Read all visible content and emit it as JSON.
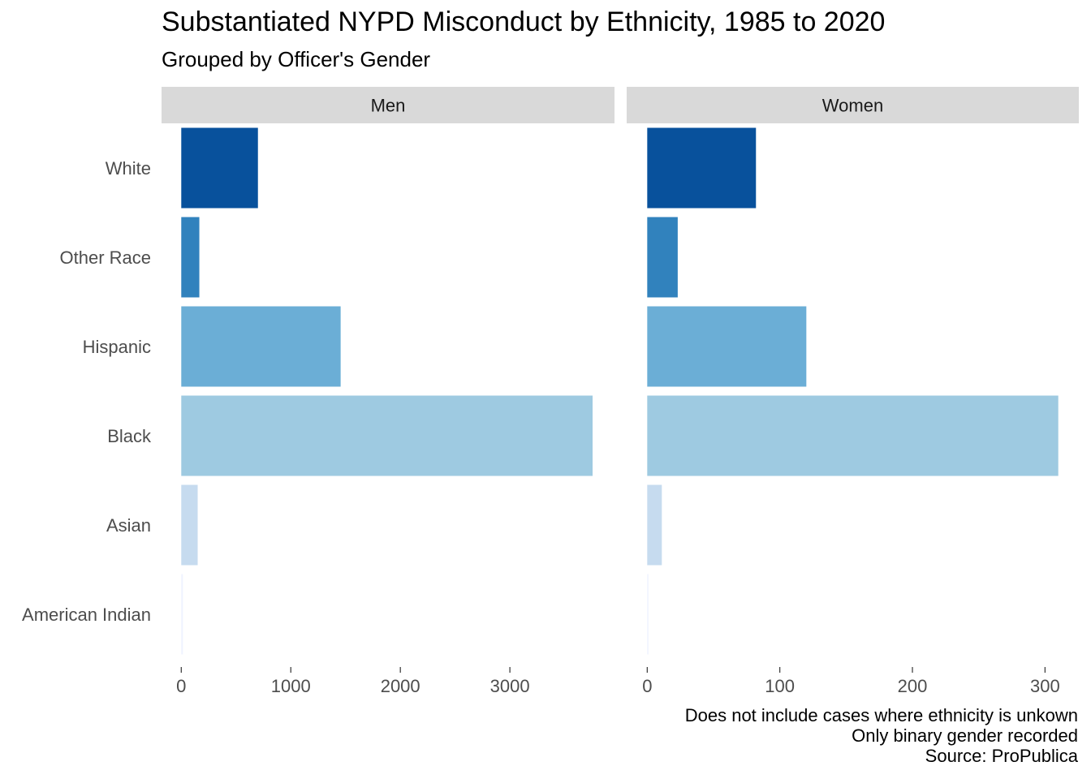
{
  "chart_data": {
    "type": "bar",
    "orientation": "horizontal",
    "title": "Substantiated NYPD Misconduct by Ethnicity, 1985 to 2020",
    "subtitle": "Grouped by Officer's Gender",
    "caption": [
      "Does not include cases where ethnicity is unkown",
      "Only binary gender recorded",
      "Source: ProPublica"
    ],
    "categories": [
      "White",
      "Other Race",
      "Hispanic",
      "Black",
      "Asian",
      "American Indian"
    ],
    "colors": [
      "#08519c",
      "#3182bd",
      "#6baed6",
      "#9ecae1",
      "#c6dbef",
      "#eff3ff"
    ],
    "grid": false,
    "facets": [
      {
        "name": "Men",
        "values": [
          700,
          165,
          1455,
          3755,
          150,
          15
        ],
        "xlim": [
          -180,
          3955
        ],
        "xticks": [
          0,
          1000,
          2000,
          3000
        ]
      },
      {
        "name": "Women",
        "values": [
          82,
          23,
          120,
          310,
          11,
          0.4
        ],
        "xlim": [
          -15.5,
          325.5
        ],
        "xticks": [
          0,
          100,
          200,
          300
        ]
      }
    ]
  }
}
